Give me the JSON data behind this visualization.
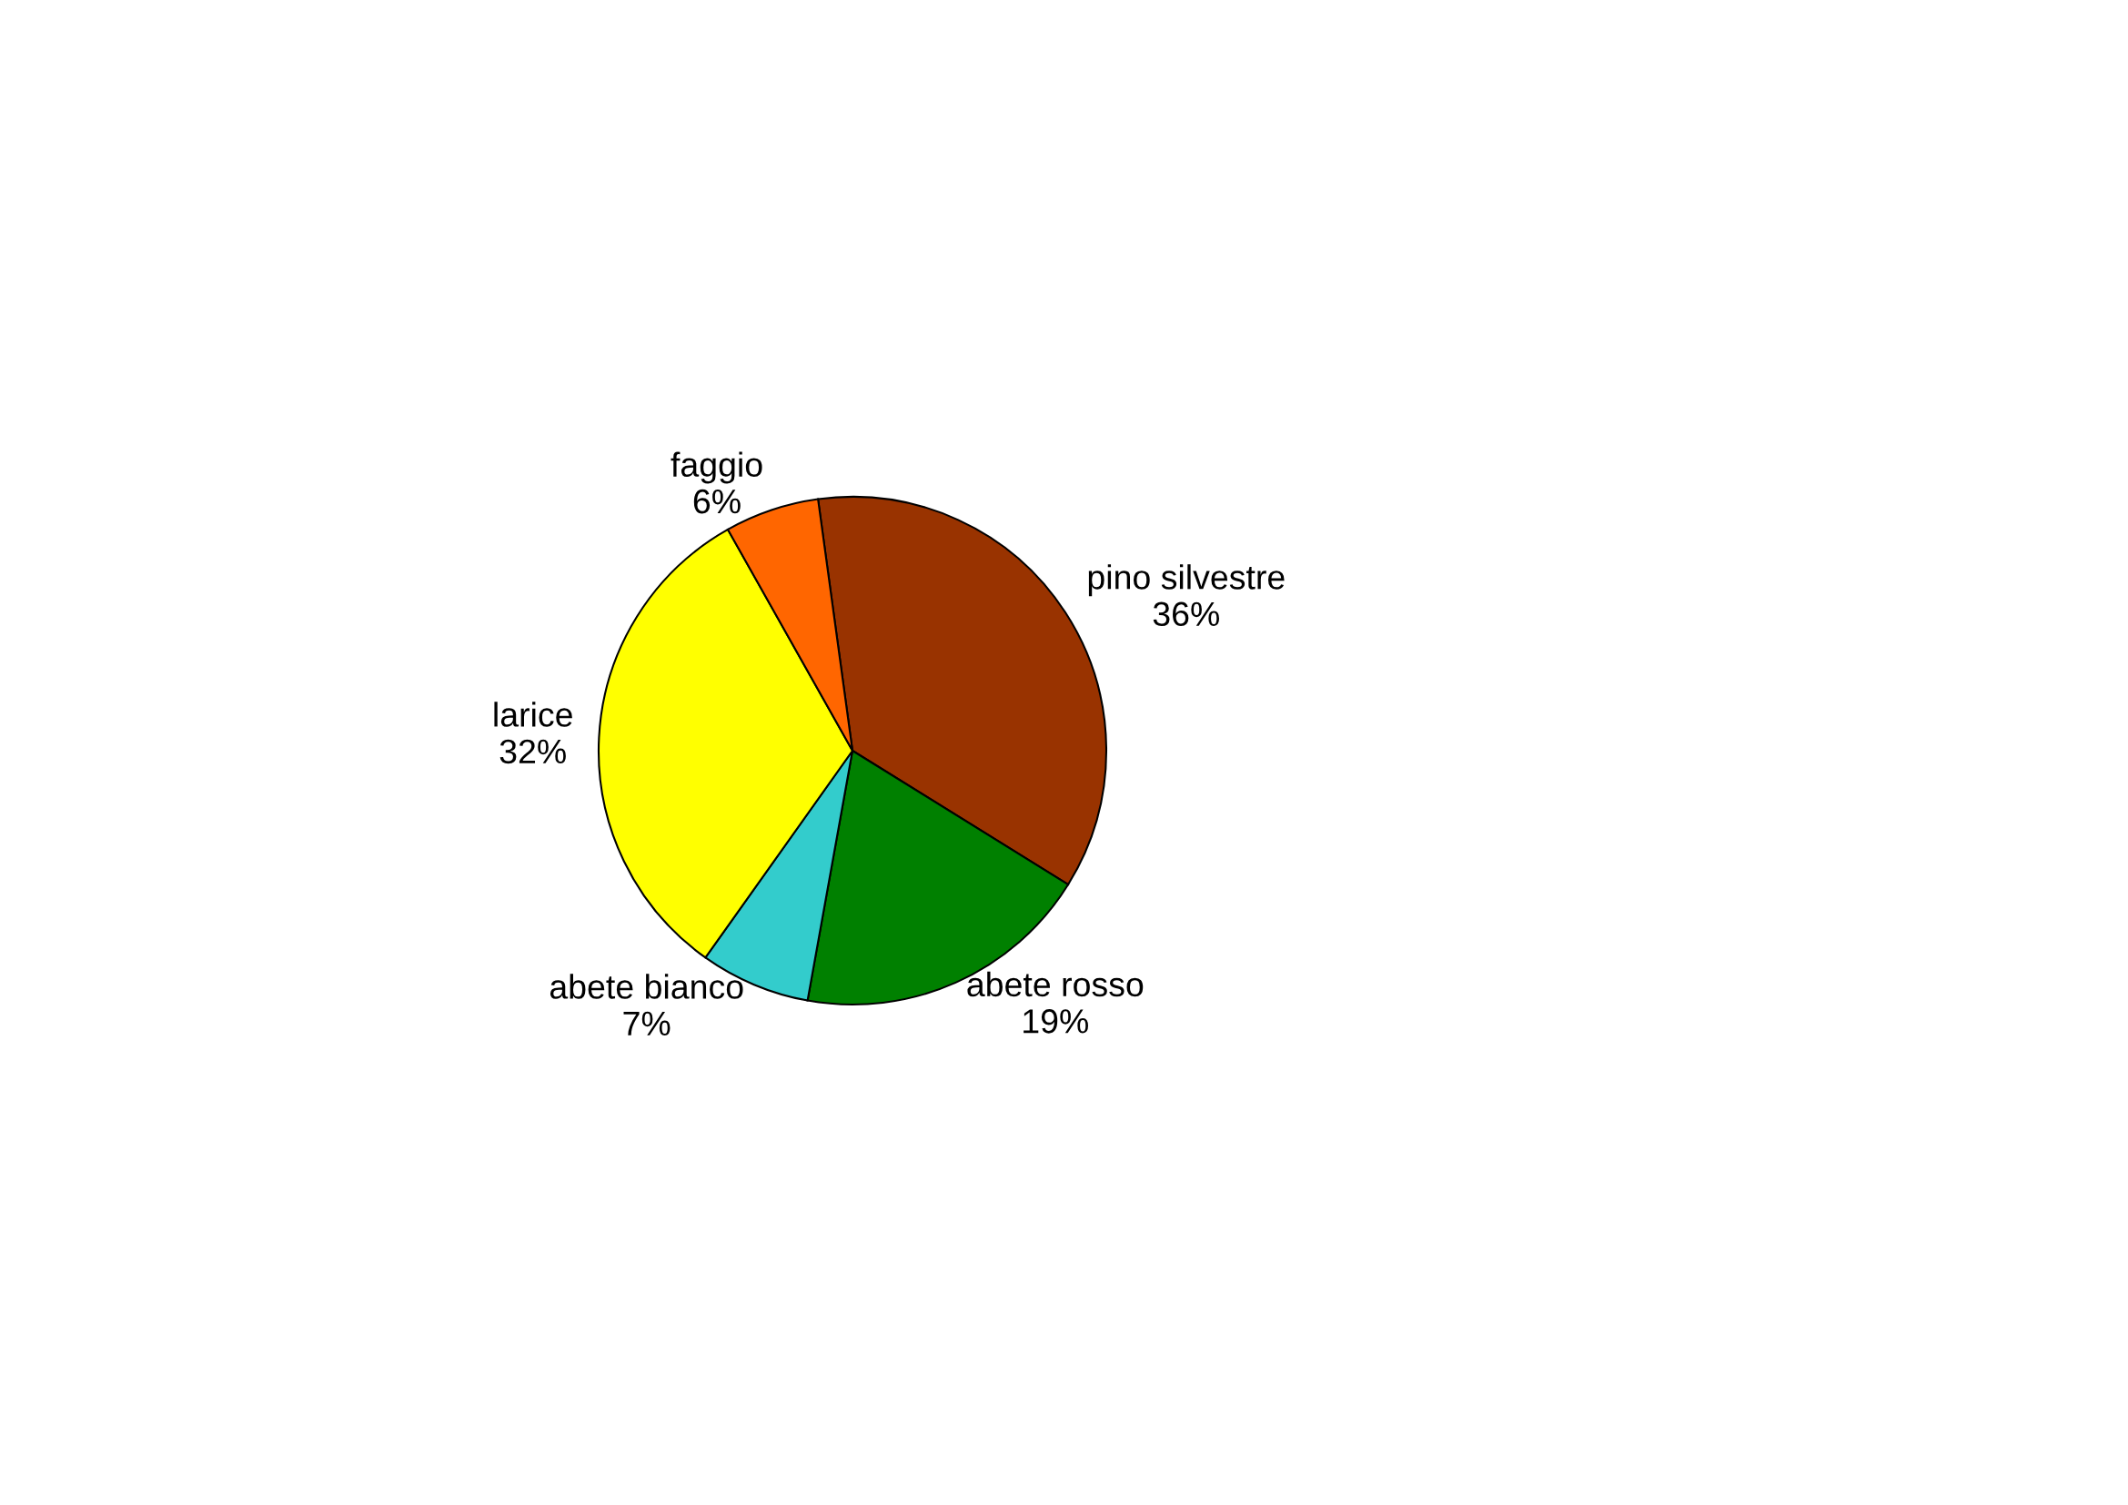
{
  "chart_data": {
    "type": "pie",
    "categories": [
      "pino silvestre",
      "abete rosso",
      "abete bianco",
      "larice",
      "faggio"
    ],
    "values": [
      36,
      19,
      7,
      32,
      6
    ],
    "value_labels": [
      "36%",
      "19%",
      "7%",
      "32%",
      "6%"
    ],
    "colors": [
      "#993300",
      "#008000",
      "#33cccc",
      "#ffff00",
      "#ff6600"
    ],
    "legend": false
  }
}
